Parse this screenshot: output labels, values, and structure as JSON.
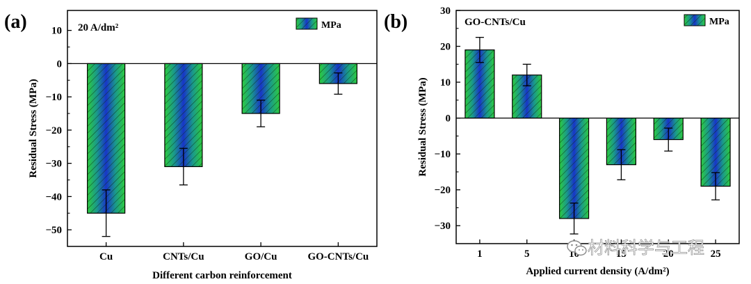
{
  "chart_data": [
    {
      "type": "bar",
      "panel_label": "(a)",
      "title": "20 A/dm²",
      "xlabel": "Different carbon reinforcement",
      "ylabel": "Residual Stress (MPa)",
      "categories": [
        "Cu",
        "CNTs/Cu",
        "GO/Cu",
        "GO-CNTs/Cu"
      ],
      "series": [
        {
          "name": "MPa",
          "values": [
            -45,
            -31,
            -15,
            -6
          ],
          "errors": [
            7,
            5.5,
            4,
            3.2
          ]
        }
      ],
      "ylim": [
        -55,
        16
      ],
      "yticks": [
        10,
        0,
        -10,
        -20,
        -30,
        -40,
        -50
      ],
      "ytick_labels": [
        "10",
        "0",
        "−10",
        "−20",
        "−30",
        "−40",
        "−50"
      ],
      "legend": {
        "position": "top-right"
      },
      "grid": false,
      "zero_line": true
    },
    {
      "type": "bar",
      "panel_label": "(b)",
      "title": "GO-CNTs/Cu",
      "xlabel": "Applied current density (A/dm²)",
      "ylabel": "Residual Stress (MPa)",
      "categories": [
        "1",
        "5",
        "10",
        "15",
        "20",
        "25"
      ],
      "series": [
        {
          "name": "MPa",
          "values": [
            19,
            12,
            -28,
            -13,
            -6,
            -19
          ],
          "errors": [
            3.5,
            3,
            4.3,
            4.2,
            3.2,
            3.8
          ]
        }
      ],
      "ylim": [
        -35,
        30
      ],
      "yticks": [
        30,
        20,
        10,
        0,
        -10,
        -20,
        -30
      ],
      "ytick_labels": [
        "30",
        "20",
        "10",
        "0",
        "−10",
        "−20",
        "−30"
      ],
      "legend": {
        "position": "top-right"
      },
      "grid": false,
      "zero_line": true
    }
  ],
  "colors": {
    "bar_gradient": [
      "#2ecc40",
      "#1a9a8a",
      "#1835c8",
      "#1a9a8a",
      "#2ecc40"
    ],
    "hatch": "#0a2a0a",
    "axis": "#000000"
  },
  "watermark": {
    "icon": "wechat-icon",
    "text": "材料科学与工程"
  }
}
